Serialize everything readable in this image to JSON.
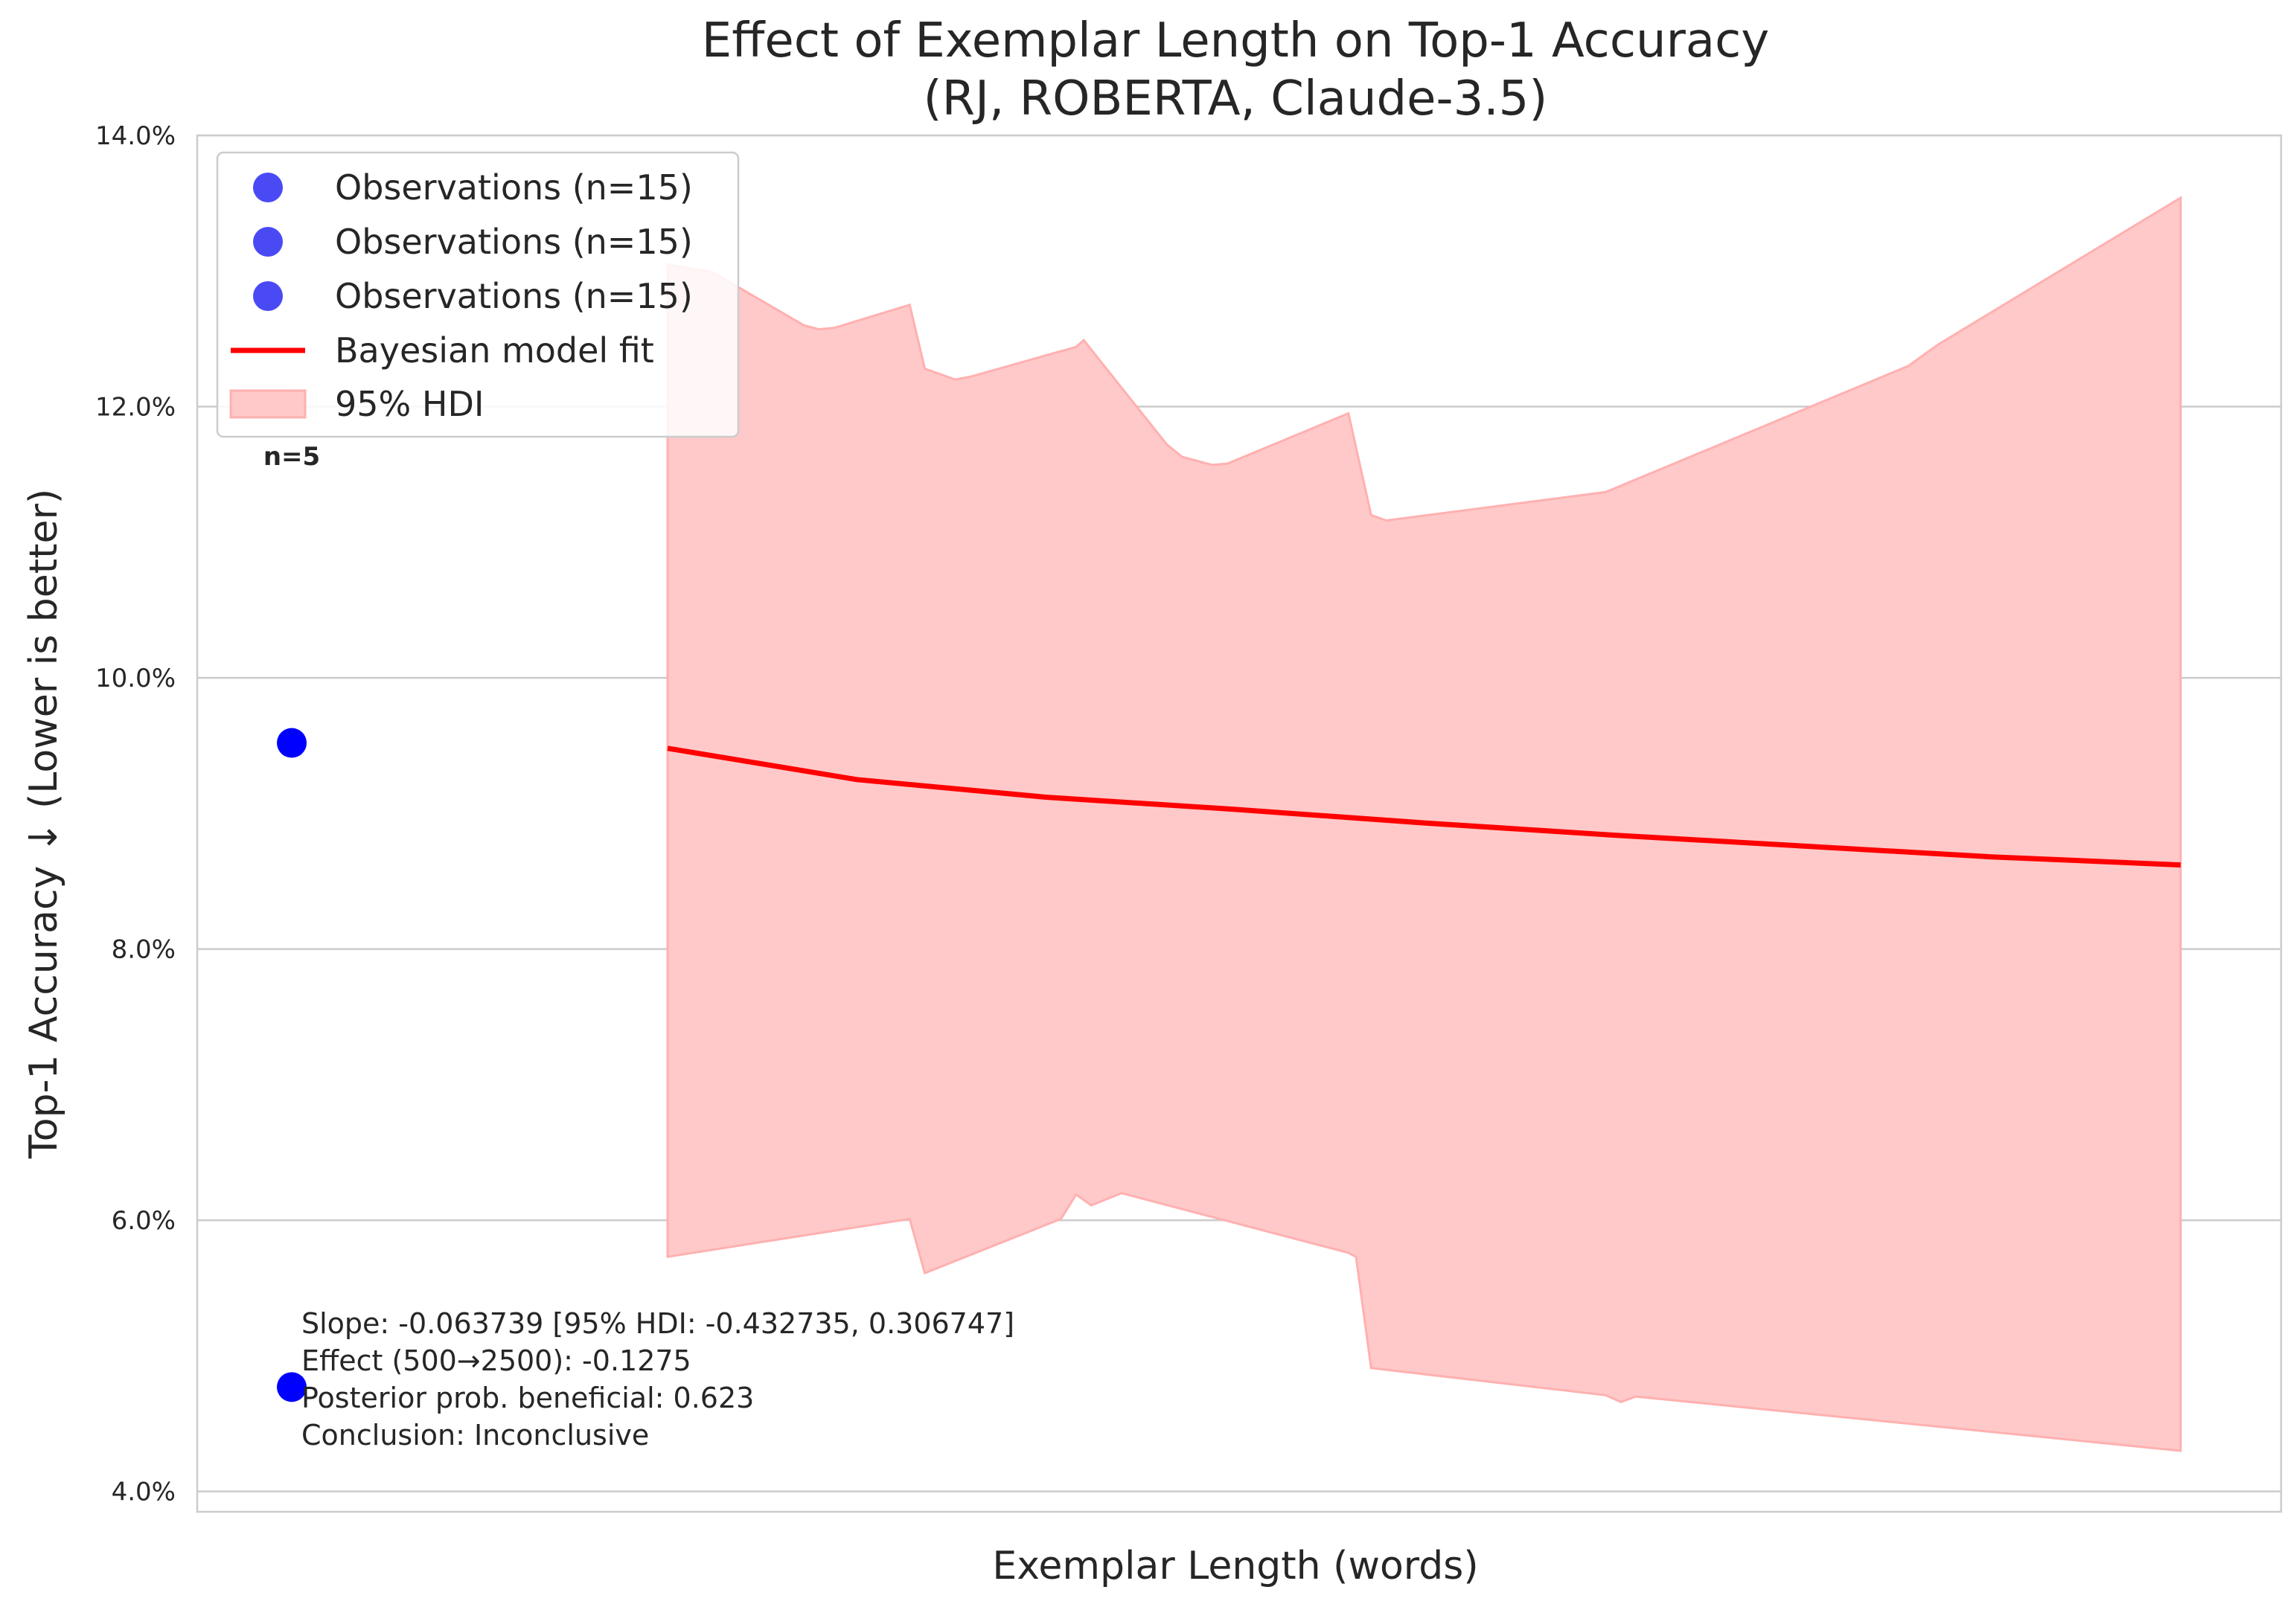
{
  "chart_data": {
    "type": "line",
    "title": "Effect of Exemplar Length on Top-1 Accuracy",
    "subtitle": "(RJ, ROBERTA, Claude-3.5)",
    "xlabel": "Exemplar Length (words)",
    "ylabel": "Top-1 Accuracy ↓ (Lower is better)",
    "ylim": [
      0.0385,
      0.14
    ],
    "y_ticks": [
      {
        "value": 0.04,
        "label": "4.0%"
      },
      {
        "value": 0.06,
        "label": "6.0%"
      },
      {
        "value": 0.08,
        "label": "8.0%"
      },
      {
        "value": 0.1,
        "label": "10.0%"
      },
      {
        "value": 0.12,
        "label": "12.0%"
      },
      {
        "value": 0.14,
        "label": "14.0%"
      }
    ],
    "x_ticks": [],
    "grid": "horizontal",
    "legend_position": "top-left",
    "legend": [
      {
        "label": "Observations (n=15)",
        "kind": "scatter"
      },
      {
        "label": "Observations (n=15)",
        "kind": "scatter"
      },
      {
        "label": "Observations (n=15)",
        "kind": "scatter"
      },
      {
        "label": "Bayesian model fit",
        "kind": "line"
      },
      {
        "label": "95% HDI",
        "kind": "band"
      }
    ],
    "observations": [
      {
        "x": 0,
        "y": 0.0952
      },
      {
        "x": 0,
        "y": 0.0477
      }
    ],
    "n_annotation": "n=5",
    "fit": {
      "x": [
        0,
        0.125,
        0.25,
        0.375,
        0.5,
        0.625,
        0.75,
        0.875,
        1.0
      ],
      "y": [
        0.0948,
        0.0925,
        0.0912,
        0.0903,
        0.0893,
        0.0884,
        0.0876,
        0.0868,
        0.0862
      ]
    },
    "hdi_upper": {
      "x": [
        0,
        0.03,
        0.09,
        0.1,
        0.11,
        0.16,
        0.17,
        0.19,
        0.2,
        0.27,
        0.275,
        0.33,
        0.34,
        0.36,
        0.37,
        0.45,
        0.465,
        0.475,
        0.62,
        0.82,
        0.84,
        1.0
      ],
      "y": [
        0.1305,
        0.1299,
        0.126,
        0.1257,
        0.1258,
        0.1275,
        0.1228,
        0.122,
        0.1222,
        0.1244,
        0.1249,
        0.1172,
        0.1163,
        0.1157,
        0.1158,
        0.1195,
        0.112,
        0.1116,
        0.1137,
        0.123,
        0.1246,
        0.1354
      ]
    },
    "hdi_lower": {
      "x": [
        0,
        0.16,
        0.17,
        0.26,
        0.27,
        0.28,
        0.3,
        0.45,
        0.455,
        0.465,
        0.62,
        0.63,
        0.64,
        1.0
      ],
      "y": [
        0.0573,
        0.0601,
        0.0561,
        0.0601,
        0.0619,
        0.0611,
        0.062,
        0.0576,
        0.0573,
        0.0491,
        0.0471,
        0.0466,
        0.047,
        0.043
      ]
    },
    "stats": [
      "Slope: -0.063739 [95% HDI: -0.432735, 0.306747]",
      "Effect (500→2500): -0.1275",
      "Posterior prob. beneficial: 0.623",
      "Conclusion: Inconclusive"
    ],
    "colors": {
      "observation": "#0000ff",
      "observation_legend": "#4a4af5",
      "fit": "#ff0000",
      "hdi_fill": "#ffc9c9",
      "hdi_edge": "#ffb0b0",
      "grid": "#cccccc",
      "text": "#262626"
    }
  }
}
